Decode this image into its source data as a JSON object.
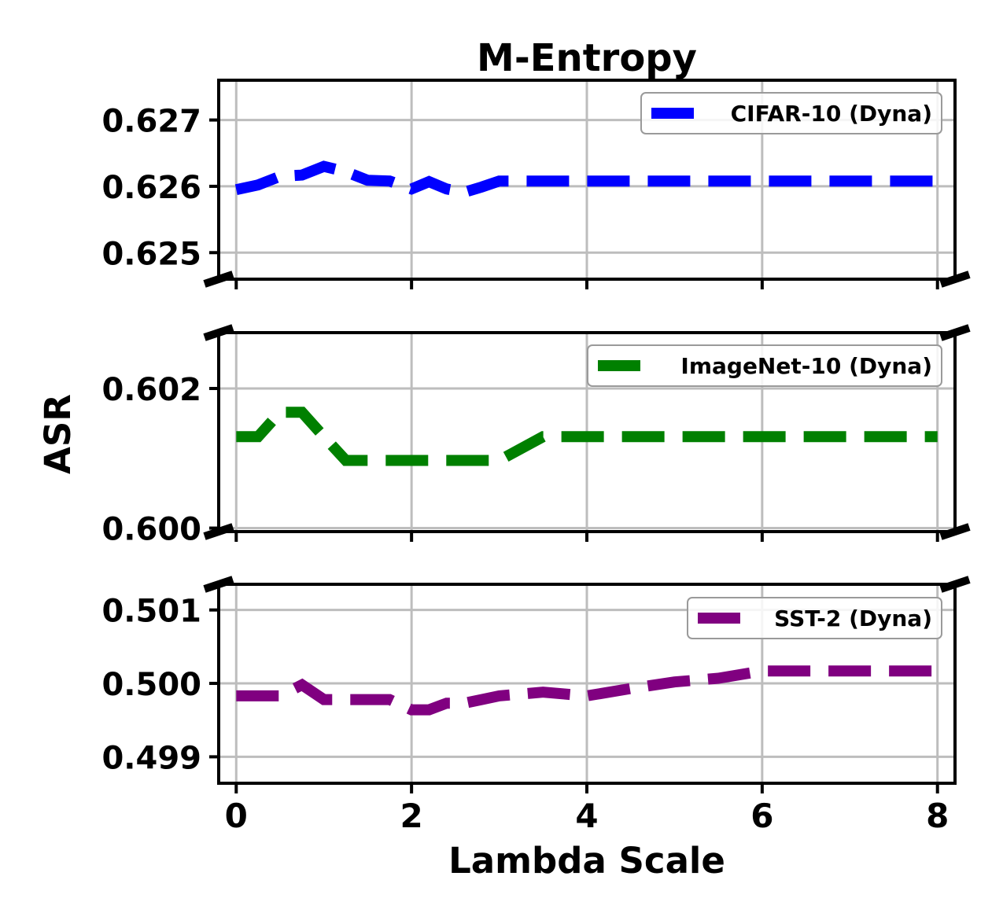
{
  "chart_data": {
    "title": "M-Entropy",
    "xlabel": "Lambda Scale",
    "ylabel": "ASR",
    "type": "line",
    "shared_x_axis": true,
    "grid": true,
    "xlim": [
      -0.2,
      8.2
    ],
    "x_ticks": [
      0,
      2,
      4,
      6,
      8
    ],
    "x_tick_labels": [
      "0",
      "2",
      "4",
      "6",
      "8"
    ],
    "panels": [
      {
        "type": "line",
        "legend_position": "top-right",
        "ylim": [
          0.6246,
          0.6276
        ],
        "y_ticks": [
          0.625,
          0.626,
          0.627
        ],
        "y_tick_labels": [
          "0.625",
          "0.626",
          "0.627"
        ],
        "series": [
          {
            "name": "CIFAR-10 (Dyna)",
            "color": "#0000ff",
            "x": [
              0,
              0.25,
              0.5,
              0.75,
              1.0,
              1.25,
              1.5,
              1.75,
              2.0,
              2.2,
              2.4,
              2.6,
              2.8,
              3.0,
              3.5,
              4.0,
              4.5,
              5.0,
              5.5,
              6.0,
              6.5,
              7.0,
              7.5,
              8.0
            ],
            "y": [
              0.62595,
              0.62602,
              0.62615,
              0.62617,
              0.6263,
              0.62622,
              0.62609,
              0.62608,
              0.62596,
              0.62607,
              0.62596,
              0.62591,
              0.62599,
              0.62608,
              0.62608,
              0.62608,
              0.62608,
              0.62608,
              0.62608,
              0.62608,
              0.62608,
              0.62608,
              0.62608,
              0.62608
            ]
          }
        ]
      },
      {
        "type": "line",
        "legend_position": "top-right",
        "ylim": [
          0.59995,
          0.6028
        ],
        "y_ticks": [
          0.6,
          0.602
        ],
        "y_tick_labels": [
          "0.600",
          "0.602"
        ],
        "series": [
          {
            "name": "ImageNet-10 (Dyna)",
            "color": "#008000",
            "x": [
              0,
              0.25,
              0.5,
              0.75,
              1.0,
              1.25,
              1.5,
              2.0,
              2.5,
              3.0,
              3.5,
              4.0,
              4.5,
              5.0,
              5.5,
              6.0,
              6.5,
              7.0,
              7.5,
              8.0
            ],
            "y": [
              0.60131,
              0.60131,
              0.60166,
              0.60166,
              0.60131,
              0.60097,
              0.60097,
              0.60097,
              0.60097,
              0.60097,
              0.60131,
              0.60131,
              0.60131,
              0.60131,
              0.60131,
              0.60131,
              0.60131,
              0.60131,
              0.60131,
              0.60131
            ]
          }
        ]
      },
      {
        "type": "line",
        "legend_position": "top-right",
        "ylim": [
          0.49864,
          0.50135
        ],
        "y_ticks": [
          0.499,
          0.5,
          0.501
        ],
        "y_tick_labels": [
          "0.499",
          "0.500",
          "0.501"
        ],
        "series": [
          {
            "name": "SST-2 (Dyna)",
            "color": "#800080",
            "x": [
              0,
              0.25,
              0.5,
              0.75,
              1.0,
              1.25,
              1.5,
              1.75,
              2.0,
              2.2,
              2.4,
              2.6,
              2.8,
              3.0,
              3.5,
              4.0,
              4.5,
              5.0,
              5.5,
              6.0,
              6.5,
              7.0,
              7.5,
              8.0
            ],
            "y": [
              0.49983,
              0.49983,
              0.49983,
              0.49998,
              0.49978,
              0.49978,
              0.49978,
              0.49978,
              0.49964,
              0.49964,
              0.49973,
              0.49973,
              0.49978,
              0.49983,
              0.49988,
              0.49983,
              0.49993,
              0.50002,
              0.50007,
              0.50017,
              0.50017,
              0.50017,
              0.50017,
              0.50017
            ]
          }
        ]
      }
    ]
  }
}
